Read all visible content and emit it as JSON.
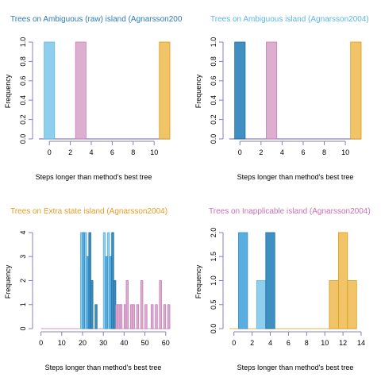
{
  "colors": {
    "axis": "#8a7fb8",
    "axis_text": "#000000",
    "light_blue": "#8ecfee",
    "light_blue_stroke": "#5fb6e6",
    "mid_blue": "#5aaedf",
    "mid_blue_stroke": "#3a8fc6",
    "dark_blue": "#3f8fc2",
    "dark_blue_stroke": "#1e6fa2",
    "pink": "#ddaed0",
    "pink_stroke": "#c77db6",
    "gold": "#f1c567",
    "gold_stroke": "#d89a1c",
    "title_blue": "#2b7ab8",
    "title_lightblue": "#5bb5e4",
    "title_orange": "#e89a1e",
    "title_pink": "#cc6fb4"
  },
  "chart_data": [
    {
      "type": "histogram",
      "title": "Trees on Ambiguous (raw) island (Agnarsson200",
      "xlabel": "Steps longer than method's best tree",
      "ylabel": "Frequency",
      "xlim": [
        -1,
        11.5
      ],
      "ylim": [
        0,
        1
      ],
      "xticks": [
        0,
        2,
        4,
        6,
        8,
        10
      ],
      "yticks": [
        0.0,
        0.2,
        0.4,
        0.6,
        0.8,
        1.0
      ],
      "ytick_labels": [
        "0.0",
        "0.2",
        "0.4",
        "0.6",
        "0.8",
        "1.0"
      ],
      "baseline_color": "axis",
      "series": [
        {
          "color": "light_blue",
          "bars": [
            {
              "x0": -0.5,
              "x1": 0.5,
              "y": 1
            }
          ]
        },
        {
          "color": "pink",
          "bars": [
            {
              "x0": 2.5,
              "x1": 3.5,
              "y": 1
            }
          ]
        },
        {
          "color": "gold",
          "bars": [
            {
              "x0": 10.5,
              "x1": 11.5,
              "y": 1
            }
          ]
        }
      ]
    },
    {
      "type": "histogram",
      "title": "Trees on Ambiguous island (Agnarsson2004)",
      "xlabel": "Steps longer than method's best tree",
      "ylabel": "Frequency",
      "xlim": [
        -1,
        11.5
      ],
      "ylim": [
        0,
        1
      ],
      "xticks": [
        0,
        2,
        4,
        6,
        8,
        10
      ],
      "yticks": [
        0.0,
        0.2,
        0.4,
        0.6,
        0.8,
        1.0
      ],
      "ytick_labels": [
        "0.0",
        "0.2",
        "0.4",
        "0.6",
        "0.8",
        "1.0"
      ],
      "baseline_color": "axis",
      "series": [
        {
          "color": "dark_blue",
          "bars": [
            {
              "x0": -0.5,
              "x1": 0.5,
              "y": 1
            }
          ]
        },
        {
          "color": "pink",
          "bars": [
            {
              "x0": 2.5,
              "x1": 3.5,
              "y": 1
            }
          ]
        },
        {
          "color": "gold",
          "bars": [
            {
              "x0": 10.5,
              "x1": 11.5,
              "y": 1
            }
          ]
        }
      ]
    },
    {
      "type": "histogram",
      "title": "Trees on Extra state island (Agnarsson2004)",
      "xlabel": "Steps longer than method's best tree",
      "ylabel": "Frequency",
      "xlim": [
        -1,
        62
      ],
      "ylim": [
        0,
        4
      ],
      "xticks": [
        0,
        10,
        20,
        30,
        40,
        50,
        60
      ],
      "yticks": [
        0,
        1,
        2,
        3,
        4
      ],
      "ytick_labels": [
        "0",
        "1",
        "2",
        "3",
        "4"
      ],
      "baseline_color": "pink",
      "baseline_range": [
        0,
        62
      ],
      "series": [
        {
          "color": "light_blue",
          "bars": [
            {
              "x0": 19,
              "x1": 20,
              "y": 4
            },
            {
              "x0": 21,
              "x1": 22,
              "y": 4
            },
            {
              "x0": 30,
              "x1": 31,
              "y": 4
            },
            {
              "x0": 32,
              "x1": 33,
              "y": 4
            }
          ]
        },
        {
          "color": "mid_blue",
          "bars": [
            {
              "x0": 20,
              "x1": 21,
              "y": 4
            },
            {
              "x0": 22,
              "x1": 23,
              "y": 3
            },
            {
              "x0": 31,
              "x1": 32,
              "y": 3
            },
            {
              "x0": 33,
              "x1": 34,
              "y": 3
            }
          ]
        },
        {
          "color": "dark_blue",
          "bars": [
            {
              "x0": 23,
              "x1": 24,
              "y": 4
            },
            {
              "x0": 24,
              "x1": 25,
              "y": 2
            },
            {
              "x0": 26,
              "x1": 27,
              "y": 1
            },
            {
              "x0": 34,
              "x1": 35,
              "y": 4
            },
            {
              "x0": 35,
              "x1": 36,
              "y": 2
            }
          ]
        },
        {
          "color": "pink",
          "bars": [
            {
              "x0": 36,
              "x1": 37,
              "y": 1
            },
            {
              "x0": 37,
              "x1": 38,
              "y": 1
            },
            {
              "x0": 38,
              "x1": 39,
              "y": 1
            },
            {
              "x0": 40,
              "x1": 41,
              "y": 1
            },
            {
              "x0": 41,
              "x1": 42,
              "y": 2
            },
            {
              "x0": 43,
              "x1": 44,
              "y": 1
            },
            {
              "x0": 44,
              "x1": 45,
              "y": 1
            },
            {
              "x0": 46,
              "x1": 47,
              "y": 1
            },
            {
              "x0": 48,
              "x1": 49,
              "y": 2
            },
            {
              "x0": 50,
              "x1": 51,
              "y": 1
            },
            {
              "x0": 53,
              "x1": 54,
              "y": 1
            },
            {
              "x0": 55,
              "x1": 56,
              "y": 1
            },
            {
              "x0": 57,
              "x1": 58,
              "y": 2
            },
            {
              "x0": 59,
              "x1": 60,
              "y": 1
            },
            {
              "x0": 61,
              "x1": 62,
              "y": 1
            }
          ]
        }
      ]
    },
    {
      "type": "histogram",
      "title": "Trees on Inapplicable island (Agnarsson2004)",
      "xlabel": "Steps longer than method's best tree",
      "ylabel": "Frequency",
      "xlim": [
        -0.5,
        14
      ],
      "ylim": [
        0,
        2
      ],
      "xticks": [
        0,
        2,
        4,
        6,
        8,
        10,
        12,
        14
      ],
      "yticks": [
        0.0,
        0.5,
        1.0,
        1.5,
        2.0
      ],
      "ytick_labels": [
        "0.0",
        "0.5",
        "1.0",
        "1.5",
        "2.0"
      ],
      "baseline_color": "gold",
      "baseline_range": [
        -0.5,
        13.5
      ],
      "series": [
        {
          "color": "mid_blue",
          "bars": [
            {
              "x0": 0.5,
              "x1": 1.5,
              "y": 2
            }
          ]
        },
        {
          "color": "light_blue",
          "bars": [
            {
              "x0": 2.5,
              "x1": 3.5,
              "y": 1
            }
          ]
        },
        {
          "color": "dark_blue",
          "bars": [
            {
              "x0": 3.5,
              "x1": 4.5,
              "y": 2
            }
          ]
        },
        {
          "color": "gold",
          "bars": [
            {
              "x0": 10.5,
              "x1": 11.5,
              "y": 1
            },
            {
              "x0": 11.5,
              "x1": 12.5,
              "y": 2
            },
            {
              "x0": 12.5,
              "x1": 13.5,
              "y": 1
            }
          ]
        }
      ]
    }
  ],
  "panel_title_colors": [
    "title_blue",
    "title_lightblue",
    "title_orange",
    "title_pink"
  ]
}
